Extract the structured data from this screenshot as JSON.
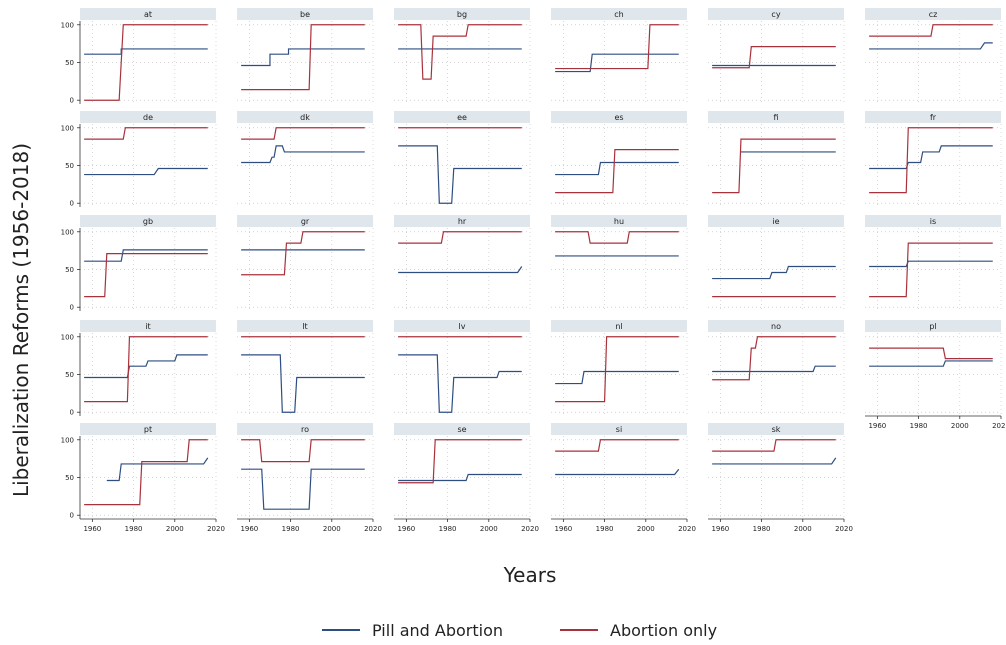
{
  "chart_data": {
    "type": "line",
    "facet": "small-multiples",
    "xlabel": "Years",
    "ylabel": "Liberalization Reforms (1956-2018)",
    "xlim": [
      1954,
      2020
    ],
    "ylim": [
      -5,
      105
    ],
    "x_ticks": [
      1960,
      1980,
      2000,
      2020
    ],
    "y_ticks": [
      0,
      50,
      100
    ],
    "grid": true,
    "legend_placement": "bottom",
    "series_names": [
      "Pill and Abortion",
      "Abortion only"
    ],
    "colors": {
      "pill": "#2e4e82",
      "abortion": "#a8323c",
      "strip": "#dfe6ec",
      "grid": "#c8c8c8"
    },
    "panels": [
      {
        "code": "at",
        "pill": [
          [
            1956,
            61
          ],
          [
            1974,
            61
          ],
          [
            1974,
            68
          ],
          [
            2016,
            68
          ]
        ],
        "abortion": [
          [
            1956,
            0
          ],
          [
            1973,
            0
          ],
          [
            1975,
            100
          ],
          [
            2016,
            100
          ]
        ]
      },
      {
        "code": "be",
        "pill": [
          [
            1956,
            46
          ],
          [
            1970,
            46
          ],
          [
            1970,
            61
          ],
          [
            1979,
            61
          ],
          [
            1979,
            68
          ],
          [
            2016,
            68
          ]
        ],
        "abortion": [
          [
            1956,
            14
          ],
          [
            1989,
            14
          ],
          [
            1990,
            100
          ],
          [
            2016,
            100
          ]
        ]
      },
      {
        "code": "bg",
        "pill": [
          [
            1956,
            68
          ],
          [
            2016,
            68
          ]
        ],
        "abortion": [
          [
            1956,
            100
          ],
          [
            1967,
            100
          ],
          [
            1968,
            28
          ],
          [
            1972,
            28
          ],
          [
            1973,
            85
          ],
          [
            1989,
            85
          ],
          [
            1990,
            100
          ],
          [
            2016,
            100
          ]
        ]
      },
      {
        "code": "ch",
        "pill": [
          [
            1956,
            38
          ],
          [
            1973,
            38
          ],
          [
            1974,
            61
          ],
          [
            2016,
            61
          ]
        ],
        "abortion": [
          [
            1956,
            42
          ],
          [
            2001,
            42
          ],
          [
            2002,
            100
          ],
          [
            2016,
            100
          ]
        ]
      },
      {
        "code": "cy",
        "pill": [
          [
            1956,
            46
          ],
          [
            2016,
            46
          ]
        ],
        "abortion": [
          [
            1956,
            43
          ],
          [
            1974,
            43
          ],
          [
            1975,
            71
          ],
          [
            2016,
            71
          ]
        ]
      },
      {
        "code": "cz",
        "pill": [
          [
            1956,
            68
          ],
          [
            2010,
            68
          ],
          [
            2012,
            76
          ],
          [
            2016,
            76
          ]
        ],
        "abortion": [
          [
            1956,
            85
          ],
          [
            1986,
            85
          ],
          [
            1987,
            100
          ],
          [
            2016,
            100
          ]
        ]
      },
      {
        "code": "de",
        "pill": [
          [
            1956,
            38
          ],
          [
            1990,
            38
          ],
          [
            1992,
            46
          ],
          [
            2016,
            46
          ]
        ],
        "abortion": [
          [
            1956,
            85
          ],
          [
            1975,
            85
          ],
          [
            1976,
            100
          ],
          [
            2016,
            100
          ]
        ]
      },
      {
        "code": "dk",
        "pill": [
          [
            1956,
            54
          ],
          [
            1970,
            54
          ],
          [
            1971,
            61
          ],
          [
            1972,
            61
          ],
          [
            1973,
            76
          ],
          [
            1976,
            76
          ],
          [
            1977,
            68
          ],
          [
            2016,
            68
          ]
        ],
        "abortion": [
          [
            1956,
            85
          ],
          [
            1972,
            85
          ],
          [
            1973,
            100
          ],
          [
            2016,
            100
          ]
        ]
      },
      {
        "code": "ee",
        "pill": [
          [
            1956,
            76
          ],
          [
            1975,
            76
          ],
          [
            1976,
            0
          ],
          [
            1982,
            0
          ],
          [
            1983,
            46
          ],
          [
            2016,
            46
          ]
        ],
        "abortion": [
          [
            1956,
            100
          ],
          [
            2016,
            100
          ]
        ]
      },
      {
        "code": "es",
        "pill": [
          [
            1956,
            38
          ],
          [
            1977,
            38
          ],
          [
            1978,
            54
          ],
          [
            2016,
            54
          ]
        ],
        "abortion": [
          [
            1956,
            14
          ],
          [
            1984,
            14
          ],
          [
            1985,
            71
          ],
          [
            2016,
            71
          ]
        ]
      },
      {
        "code": "fi",
        "pill": [
          [
            1970,
            68
          ],
          [
            2016,
            68
          ]
        ],
        "abortion": [
          [
            1956,
            14
          ],
          [
            1969,
            14
          ],
          [
            1970,
            85
          ],
          [
            2016,
            85
          ]
        ]
      },
      {
        "code": "fr",
        "pill": [
          [
            1956,
            46
          ],
          [
            1974,
            46
          ],
          [
            1975,
            54
          ],
          [
            1981,
            54
          ],
          [
            1982,
            68
          ],
          [
            1990,
            68
          ],
          [
            1991,
            76
          ],
          [
            2016,
            76
          ]
        ],
        "abortion": [
          [
            1956,
            14
          ],
          [
            1974,
            14
          ],
          [
            1975,
            100
          ],
          [
            2016,
            100
          ]
        ]
      },
      {
        "code": "gb",
        "pill": [
          [
            1956,
            61
          ],
          [
            1974,
            61
          ],
          [
            1975,
            76
          ],
          [
            2016,
            76
          ]
        ],
        "abortion": [
          [
            1956,
            14
          ],
          [
            1966,
            14
          ],
          [
            1967,
            71
          ],
          [
            2016,
            71
          ]
        ]
      },
      {
        "code": "gr",
        "pill": [
          [
            1956,
            76
          ],
          [
            2016,
            76
          ]
        ],
        "abortion": [
          [
            1956,
            43
          ],
          [
            1977,
            43
          ],
          [
            1978,
            85
          ],
          [
            1985,
            85
          ],
          [
            1986,
            100
          ],
          [
            2016,
            100
          ]
        ]
      },
      {
        "code": "hr",
        "pill": [
          [
            1956,
            46
          ],
          [
            2014,
            46
          ],
          [
            2016,
            54
          ]
        ],
        "abortion": [
          [
            1956,
            85
          ],
          [
            1977,
            85
          ],
          [
            1978,
            100
          ],
          [
            2016,
            100
          ]
        ]
      },
      {
        "code": "hu",
        "pill": [
          [
            1956,
            68
          ],
          [
            2016,
            68
          ]
        ],
        "abortion": [
          [
            1956,
            100
          ],
          [
            1972,
            100
          ],
          [
            1973,
            85
          ],
          [
            1991,
            85
          ],
          [
            1992,
            100
          ],
          [
            2016,
            100
          ]
        ]
      },
      {
        "code": "ie",
        "pill": [
          [
            1956,
            38
          ],
          [
            1984,
            38
          ],
          [
            1985,
            46
          ],
          [
            1992,
            46
          ],
          [
            1993,
            54
          ],
          [
            2016,
            54
          ]
        ],
        "abortion": [
          [
            1956,
            14
          ],
          [
            2016,
            14
          ]
        ]
      },
      {
        "code": "is",
        "pill": [
          [
            1956,
            54
          ],
          [
            1974,
            54
          ],
          [
            1975,
            61
          ],
          [
            2016,
            61
          ]
        ],
        "abortion": [
          [
            1956,
            14
          ],
          [
            1974,
            14
          ],
          [
            1975,
            85
          ],
          [
            2016,
            85
          ]
        ]
      },
      {
        "code": "it",
        "pill": [
          [
            1956,
            46
          ],
          [
            1970,
            46
          ],
          [
            1977,
            46
          ],
          [
            1978,
            61
          ],
          [
            1986,
            61
          ],
          [
            1987,
            68
          ],
          [
            2000,
            68
          ],
          [
            2001,
            76
          ],
          [
            2016,
            76
          ]
        ],
        "abortion": [
          [
            1956,
            14
          ],
          [
            1977,
            14
          ],
          [
            1978,
            100
          ],
          [
            2016,
            100
          ]
        ]
      },
      {
        "code": "lt",
        "pill": [
          [
            1956,
            76
          ],
          [
            1975,
            76
          ],
          [
            1976,
            0
          ],
          [
            1982,
            0
          ],
          [
            1983,
            46
          ],
          [
            2016,
            46
          ]
        ],
        "abortion": [
          [
            1956,
            100
          ],
          [
            2016,
            100
          ]
        ]
      },
      {
        "code": "lv",
        "pill": [
          [
            1956,
            76
          ],
          [
            1975,
            76
          ],
          [
            1976,
            0
          ],
          [
            1982,
            0
          ],
          [
            1983,
            46
          ],
          [
            2004,
            46
          ],
          [
            2005,
            54
          ],
          [
            2016,
            54
          ]
        ],
        "abortion": [
          [
            1956,
            100
          ],
          [
            2016,
            100
          ]
        ]
      },
      {
        "code": "nl",
        "pill": [
          [
            1956,
            38
          ],
          [
            1969,
            38
          ],
          [
            1970,
            54
          ],
          [
            2016,
            54
          ]
        ],
        "abortion": [
          [
            1956,
            14
          ],
          [
            1980,
            14
          ],
          [
            1981,
            100
          ],
          [
            2016,
            100
          ]
        ]
      },
      {
        "code": "no",
        "pill": [
          [
            1956,
            54
          ],
          [
            2005,
            54
          ],
          [
            2006,
            61
          ],
          [
            2016,
            61
          ]
        ],
        "abortion": [
          [
            1956,
            43
          ],
          [
            1974,
            43
          ],
          [
            1975,
            85
          ],
          [
            1977,
            85
          ],
          [
            1978,
            100
          ],
          [
            2016,
            100
          ]
        ]
      },
      {
        "code": "pl",
        "pill": [
          [
            1956,
            61
          ],
          [
            1992,
            61
          ],
          [
            1993,
            68
          ],
          [
            2016,
            68
          ]
        ],
        "abortion": [
          [
            1956,
            85
          ],
          [
            1992,
            85
          ],
          [
            1993,
            71
          ],
          [
            2016,
            71
          ]
        ]
      },
      {
        "code": "pt",
        "pill": [
          [
            1967,
            46
          ],
          [
            1973,
            46
          ],
          [
            1974,
            68
          ],
          [
            2014,
            68
          ],
          [
            2016,
            76
          ]
        ],
        "abortion": [
          [
            1956,
            14
          ],
          [
            1983,
            14
          ],
          [
            1984,
            71
          ],
          [
            2006,
            71
          ],
          [
            2007,
            100
          ],
          [
            2016,
            100
          ]
        ]
      },
      {
        "code": "ro",
        "pill": [
          [
            1956,
            61
          ],
          [
            1966,
            61
          ],
          [
            1967,
            8
          ],
          [
            1989,
            8
          ],
          [
            1990,
            61
          ],
          [
            2016,
            61
          ]
        ],
        "abortion": [
          [
            1956,
            100
          ],
          [
            1965,
            100
          ],
          [
            1966,
            71
          ],
          [
            1989,
            71
          ],
          [
            1990,
            100
          ],
          [
            2016,
            100
          ]
        ]
      },
      {
        "code": "se",
        "pill": [
          [
            1956,
            46
          ],
          [
            1989,
            46
          ],
          [
            1990,
            54
          ],
          [
            2016,
            54
          ]
        ],
        "abortion": [
          [
            1956,
            43
          ],
          [
            1973,
            43
          ],
          [
            1974,
            100
          ],
          [
            2016,
            100
          ]
        ]
      },
      {
        "code": "si",
        "pill": [
          [
            1956,
            54
          ],
          [
            2014,
            54
          ],
          [
            2016,
            61
          ]
        ],
        "abortion": [
          [
            1956,
            85
          ],
          [
            1977,
            85
          ],
          [
            1978,
            100
          ],
          [
            2016,
            100
          ]
        ]
      },
      {
        "code": "sk",
        "pill": [
          [
            1956,
            68
          ],
          [
            2014,
            68
          ],
          [
            2016,
            76
          ]
        ],
        "abortion": [
          [
            1956,
            85
          ],
          [
            1986,
            85
          ],
          [
            1987,
            100
          ],
          [
            2016,
            100
          ]
        ]
      }
    ]
  }
}
